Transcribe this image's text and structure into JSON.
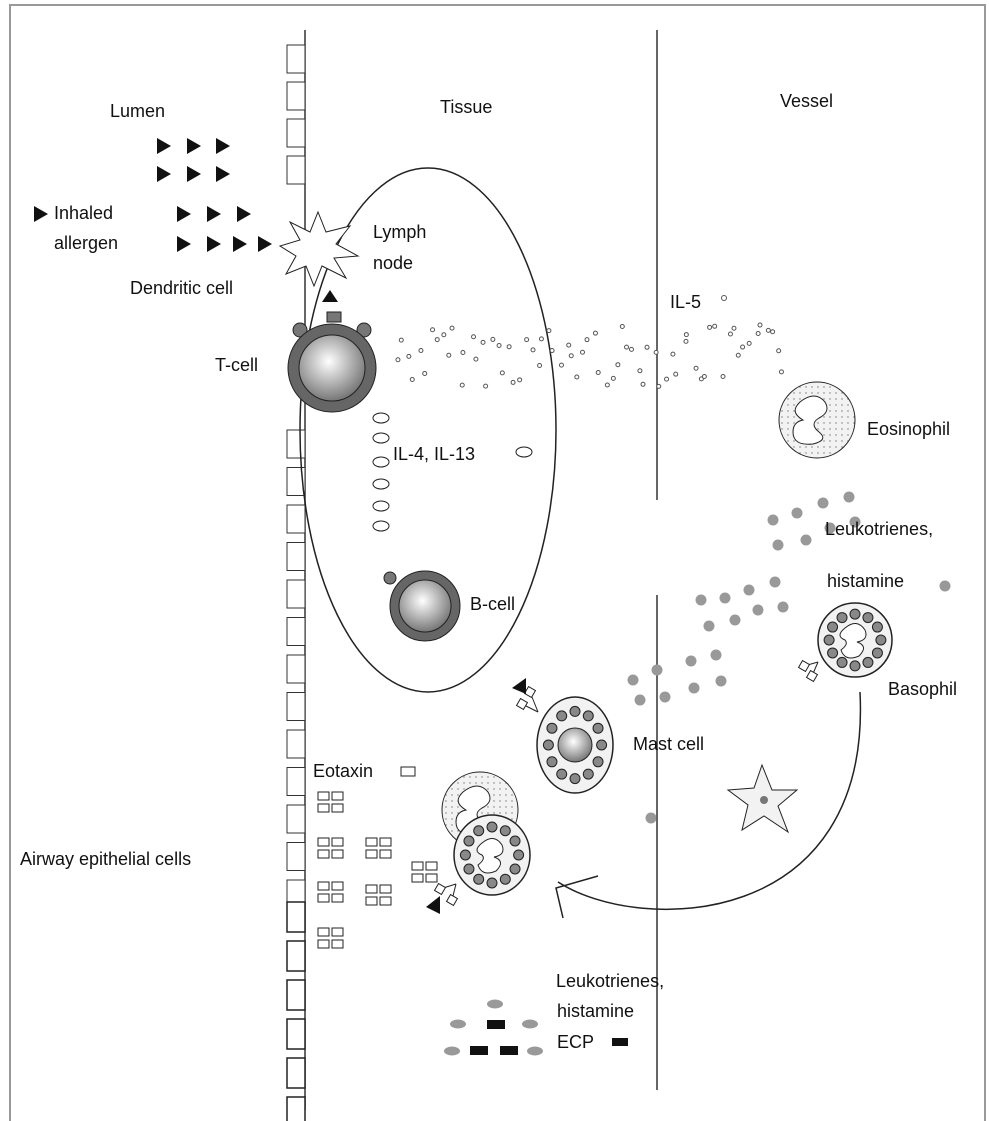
{
  "labels": {
    "lumen": "Lumen",
    "tissue": "Tissue",
    "vessel": "Vessel",
    "inhaled_allergen": [
      "Inhaled",
      "allergen"
    ],
    "lymph_node": [
      "Lymph",
      "node"
    ],
    "dendritic_cell": "Dendritic cell",
    "il5": "IL-5",
    "t_cell": "T-cell",
    "eosinophil": "Eosinophil",
    "il4_il13": "IL-4, IL-13",
    "leukotrienes_histamine_upper": [
      "Leukotrienes,",
      "histamine"
    ],
    "b_cell": "B-cell",
    "basophil": "Basophil",
    "mast_cell": "Mast cell",
    "eotaxin": "Eotaxin",
    "airway_epithelial_cells": "Airway epithelial cells",
    "leukotrienes_histamine_lower": [
      "Leukotrienes,",
      "histamine"
    ],
    "ecp": "ECP"
  }
}
